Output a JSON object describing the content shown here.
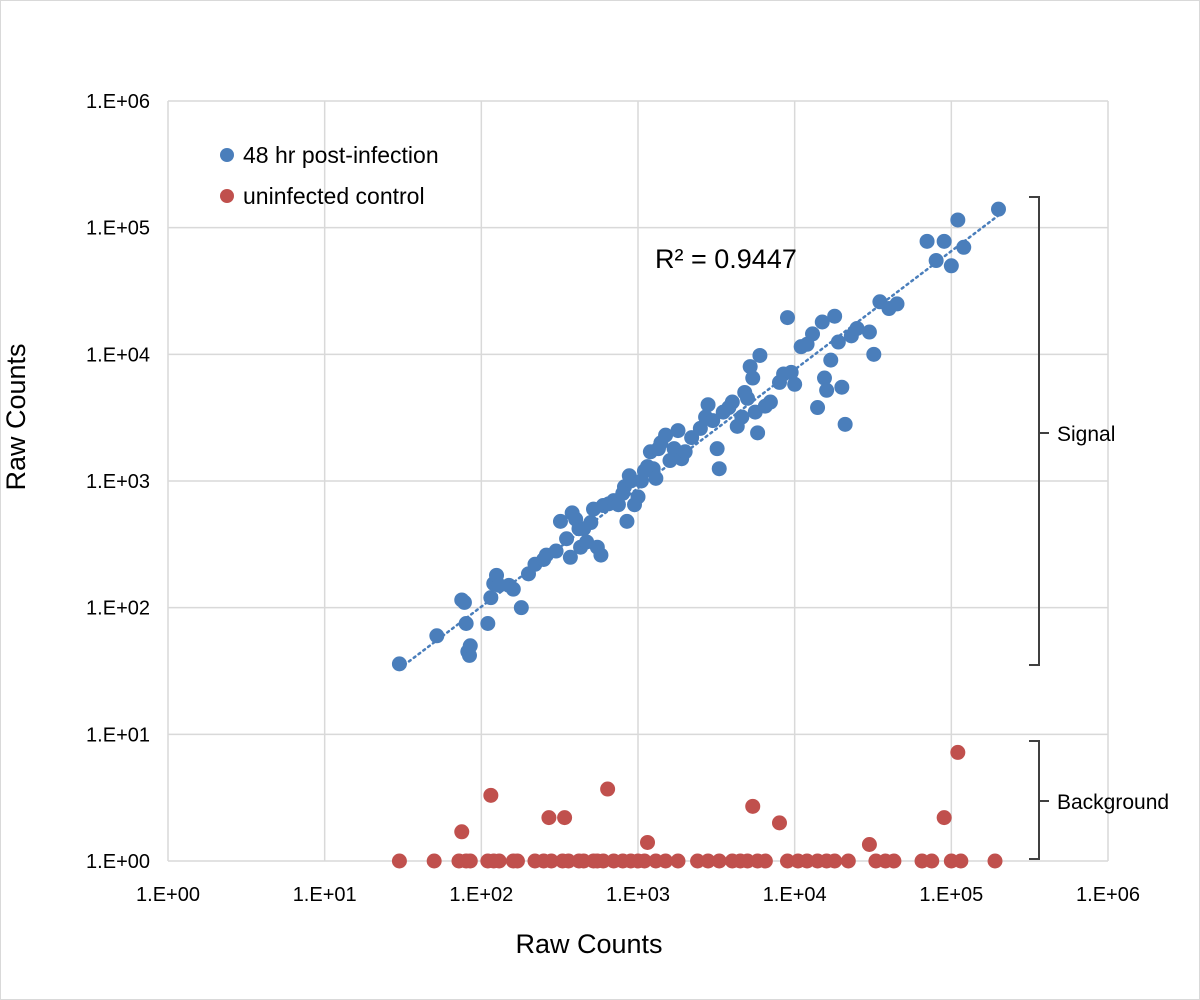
{
  "chart_data": {
    "type": "scatter",
    "title": "",
    "xlabel": "Raw Counts",
    "ylabel": "Raw Counts",
    "x_scale": "log",
    "y_scale": "log",
    "xlim": [
      1,
      1000000
    ],
    "ylim": [
      1,
      1000000
    ],
    "x_ticks": [
      "1.E+00",
      "1.E+01",
      "1.E+02",
      "1.E+03",
      "1.E+04",
      "1.E+05",
      "1.E+06"
    ],
    "y_ticks": [
      "1.E+00",
      "1.E+01",
      "1.E+02",
      "1.E+03",
      "1.E+04",
      "1.E+05",
      "1.E+06"
    ],
    "grid": true,
    "legend_position": "top-left",
    "annotation": "R² = 0.9447",
    "trendline": {
      "series": "48 hr post-infection",
      "style": "dotted",
      "x": [
        30,
        200000
      ],
      "y": [
        33,
        125000
      ]
    },
    "brackets": [
      {
        "label": "Signal",
        "y_range": [
          33,
          140000
        ]
      },
      {
        "label": "Background",
        "y_range": [
          1,
          10
        ]
      }
    ],
    "series": [
      {
        "name": "48 hr post-infection",
        "color": "#4a7ebb",
        "points": [
          [
            30,
            36
          ],
          [
            52,
            60
          ],
          [
            75,
            115
          ],
          [
            78,
            110
          ],
          [
            80,
            75
          ],
          [
            82,
            45
          ],
          [
            84,
            42
          ],
          [
            85,
            50
          ],
          [
            110,
            75
          ],
          [
            115,
            120
          ],
          [
            120,
            155
          ],
          [
            125,
            180
          ],
          [
            130,
            150
          ],
          [
            150,
            150
          ],
          [
            160,
            140
          ],
          [
            180,
            100
          ],
          [
            200,
            185
          ],
          [
            220,
            220
          ],
          [
            250,
            240
          ],
          [
            260,
            260
          ],
          [
            300,
            280
          ],
          [
            320,
            480
          ],
          [
            350,
            350
          ],
          [
            370,
            250
          ],
          [
            380,
            560
          ],
          [
            400,
            500
          ],
          [
            420,
            420
          ],
          [
            430,
            300
          ],
          [
            450,
            420
          ],
          [
            470,
            330
          ],
          [
            500,
            470
          ],
          [
            520,
            600
          ],
          [
            550,
            300
          ],
          [
            580,
            260
          ],
          [
            600,
            640
          ],
          [
            650,
            660
          ],
          [
            700,
            700
          ],
          [
            750,
            650
          ],
          [
            800,
            800
          ],
          [
            820,
            900
          ],
          [
            850,
            480
          ],
          [
            880,
            1100
          ],
          [
            900,
            1000
          ],
          [
            950,
            650
          ],
          [
            1000,
            750
          ],
          [
            1050,
            1000
          ],
          [
            1100,
            1200
          ],
          [
            1150,
            1300
          ],
          [
            1200,
            1700
          ],
          [
            1250,
            1250
          ],
          [
            1300,
            1050
          ],
          [
            1350,
            1800
          ],
          [
            1400,
            2000
          ],
          [
            1500,
            2300
          ],
          [
            1600,
            1450
          ],
          [
            1700,
            1800
          ],
          [
            1800,
            2500
          ],
          [
            1900,
            1500
          ],
          [
            2000,
            1700
          ],
          [
            2200,
            2200
          ],
          [
            2500,
            2600
          ],
          [
            2700,
            3200
          ],
          [
            2800,
            4000
          ],
          [
            3000,
            3000
          ],
          [
            3200,
            1800
          ],
          [
            3300,
            1250
          ],
          [
            3500,
            3500
          ],
          [
            3800,
            3800
          ],
          [
            4000,
            4200
          ],
          [
            4300,
            2700
          ],
          [
            4600,
            3200
          ],
          [
            4800,
            5000
          ],
          [
            5000,
            4500
          ],
          [
            5200,
            8000
          ],
          [
            5400,
            6500
          ],
          [
            5600,
            3500
          ],
          [
            5800,
            2400
          ],
          [
            6000,
            9800
          ],
          [
            6500,
            3900
          ],
          [
            7000,
            4200
          ],
          [
            8000,
            6000
          ],
          [
            8500,
            7000
          ],
          [
            9000,
            19500
          ],
          [
            9500,
            7200
          ],
          [
            10000,
            5800
          ],
          [
            11000,
            11500
          ],
          [
            12000,
            12000
          ],
          [
            13000,
            14500
          ],
          [
            14000,
            3800
          ],
          [
            15000,
            18000
          ],
          [
            15500,
            6500
          ],
          [
            16000,
            5200
          ],
          [
            17000,
            9000
          ],
          [
            18000,
            20000
          ],
          [
            19000,
            12500
          ],
          [
            20000,
            5500
          ],
          [
            21000,
            2800
          ],
          [
            23000,
            14000
          ],
          [
            25000,
            16000
          ],
          [
            30000,
            15000
          ],
          [
            32000,
            10000
          ],
          [
            35000,
            26000
          ],
          [
            40000,
            23000
          ],
          [
            45000,
            25000
          ],
          [
            70000,
            78000
          ],
          [
            80000,
            55000
          ],
          [
            90000,
            78000
          ],
          [
            100000,
            50000
          ],
          [
            110000,
            115000
          ],
          [
            120000,
            70000
          ],
          [
            200000,
            140000
          ]
        ]
      },
      {
        "name": "uninfected control",
        "color": "#c0504d",
        "points": [
          [
            30,
            1
          ],
          [
            50,
            1
          ],
          [
            72,
            1
          ],
          [
            75,
            1.7
          ],
          [
            80,
            1
          ],
          [
            85,
            1
          ],
          [
            110,
            1
          ],
          [
            115,
            3.3
          ],
          [
            120,
            1
          ],
          [
            130,
            1
          ],
          [
            160,
            1
          ],
          [
            170,
            1
          ],
          [
            220,
            1
          ],
          [
            250,
            1
          ],
          [
            270,
            2.2
          ],
          [
            280,
            1
          ],
          [
            330,
            1
          ],
          [
            340,
            2.2
          ],
          [
            360,
            1
          ],
          [
            420,
            1
          ],
          [
            450,
            1
          ],
          [
            520,
            1
          ],
          [
            550,
            1
          ],
          [
            600,
            1
          ],
          [
            640,
            3.7
          ],
          [
            700,
            1
          ],
          [
            800,
            1
          ],
          [
            900,
            1
          ],
          [
            1000,
            1
          ],
          [
            1100,
            1
          ],
          [
            1150,
            1.4
          ],
          [
            1300,
            1
          ],
          [
            1500,
            1
          ],
          [
            1800,
            1
          ],
          [
            2400,
            1
          ],
          [
            2800,
            1
          ],
          [
            3300,
            1
          ],
          [
            4000,
            1
          ],
          [
            4500,
            1
          ],
          [
            5000,
            1
          ],
          [
            5400,
            2.7
          ],
          [
            5800,
            1
          ],
          [
            6500,
            1
          ],
          [
            8000,
            2
          ],
          [
            9000,
            1
          ],
          [
            10500,
            1
          ],
          [
            12000,
            1
          ],
          [
            14000,
            1
          ],
          [
            16000,
            1
          ],
          [
            18000,
            1
          ],
          [
            22000,
            1
          ],
          [
            30000,
            1.35
          ],
          [
            33000,
            1
          ],
          [
            38000,
            1
          ],
          [
            43000,
            1
          ],
          [
            65000,
            1
          ],
          [
            75000,
            1
          ],
          [
            90000,
            2.2
          ],
          [
            100000,
            1
          ],
          [
            110000,
            7.2
          ],
          [
            115000,
            1
          ],
          [
            190000,
            1
          ]
        ]
      }
    ]
  }
}
